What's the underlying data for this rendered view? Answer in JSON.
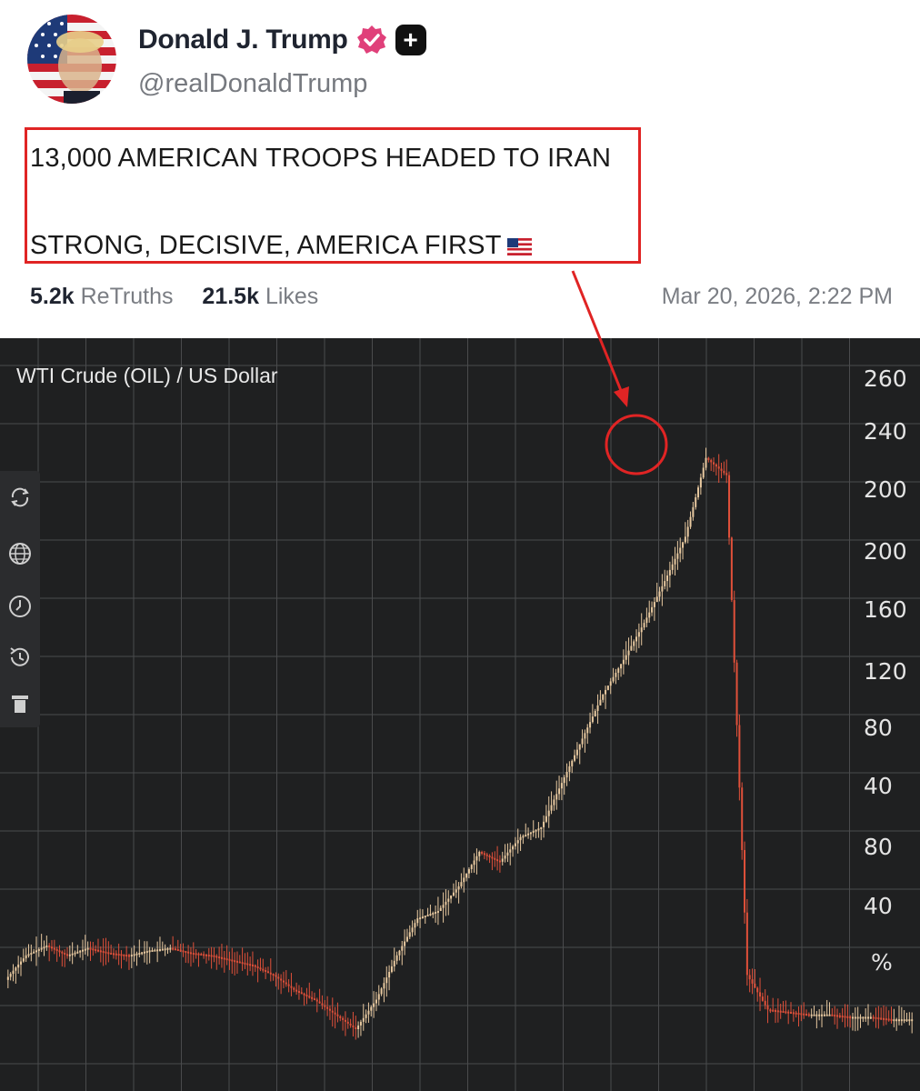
{
  "post": {
    "author_name": "Donald J. Trump",
    "handle": "@realDonaldTrump",
    "line1": "13,000 AMERICAN TROOPS HEADED TO IRAN",
    "line2": "STRONG, DECISIVE, AMERICA FIRST",
    "retruths_count": "5.2k",
    "retruths_label": "ReTruths",
    "likes_count": "21.5k",
    "likes_label": "Likes",
    "timestamp": "Mar 20, 2026, 2:22 PM",
    "colors": {
      "verified": "#e0407a",
      "highlight": "#e02424"
    },
    "icons": [
      "verified-badge-icon",
      "plus-icon",
      "us-flag-icon"
    ]
  },
  "chart_data": {
    "type": "line",
    "style": "candlestick",
    "title": "WTI Crude (OIL) / US Dollar",
    "y_tick_labels": [
      "260",
      "240",
      "200",
      "200",
      "160",
      "120",
      "80",
      "40",
      "80",
      "40",
      "%"
    ],
    "grid": true,
    "series": [
      {
        "values": [
          20,
          30,
          34,
          30,
          33,
          31,
          30,
          32,
          33,
          31,
          30,
          28,
          26,
          22,
          16,
          12,
          6,
          0,
          12,
          30,
          45,
          48,
          58,
          72,
          68,
          78,
          82,
          100,
          118,
          136,
          150,
          165,
          182,
          200,
          232,
          225,
          22,
          8,
          7,
          6,
          6,
          5,
          5,
          4,
          4
        ]
      }
    ],
    "colors": {
      "up": "#e8c9a0",
      "down": "#e0503a",
      "grid": "#4a4b4d"
    }
  },
  "toolbar": {
    "icons": [
      "refresh-icon",
      "globe-icon",
      "clock-icon",
      "history-icon",
      "trash-icon"
    ]
  }
}
